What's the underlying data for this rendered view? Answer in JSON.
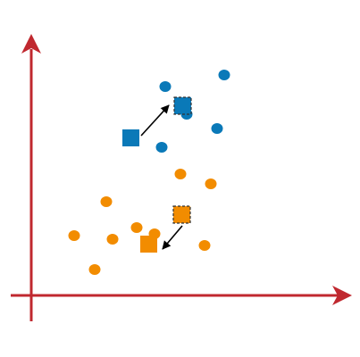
{
  "axis_color": "#c0282f",
  "arrow_color": "#000000",
  "clusters": [
    {
      "color": "#0a79b8"
    },
    {
      "color": "#f28c00"
    }
  ]
}
